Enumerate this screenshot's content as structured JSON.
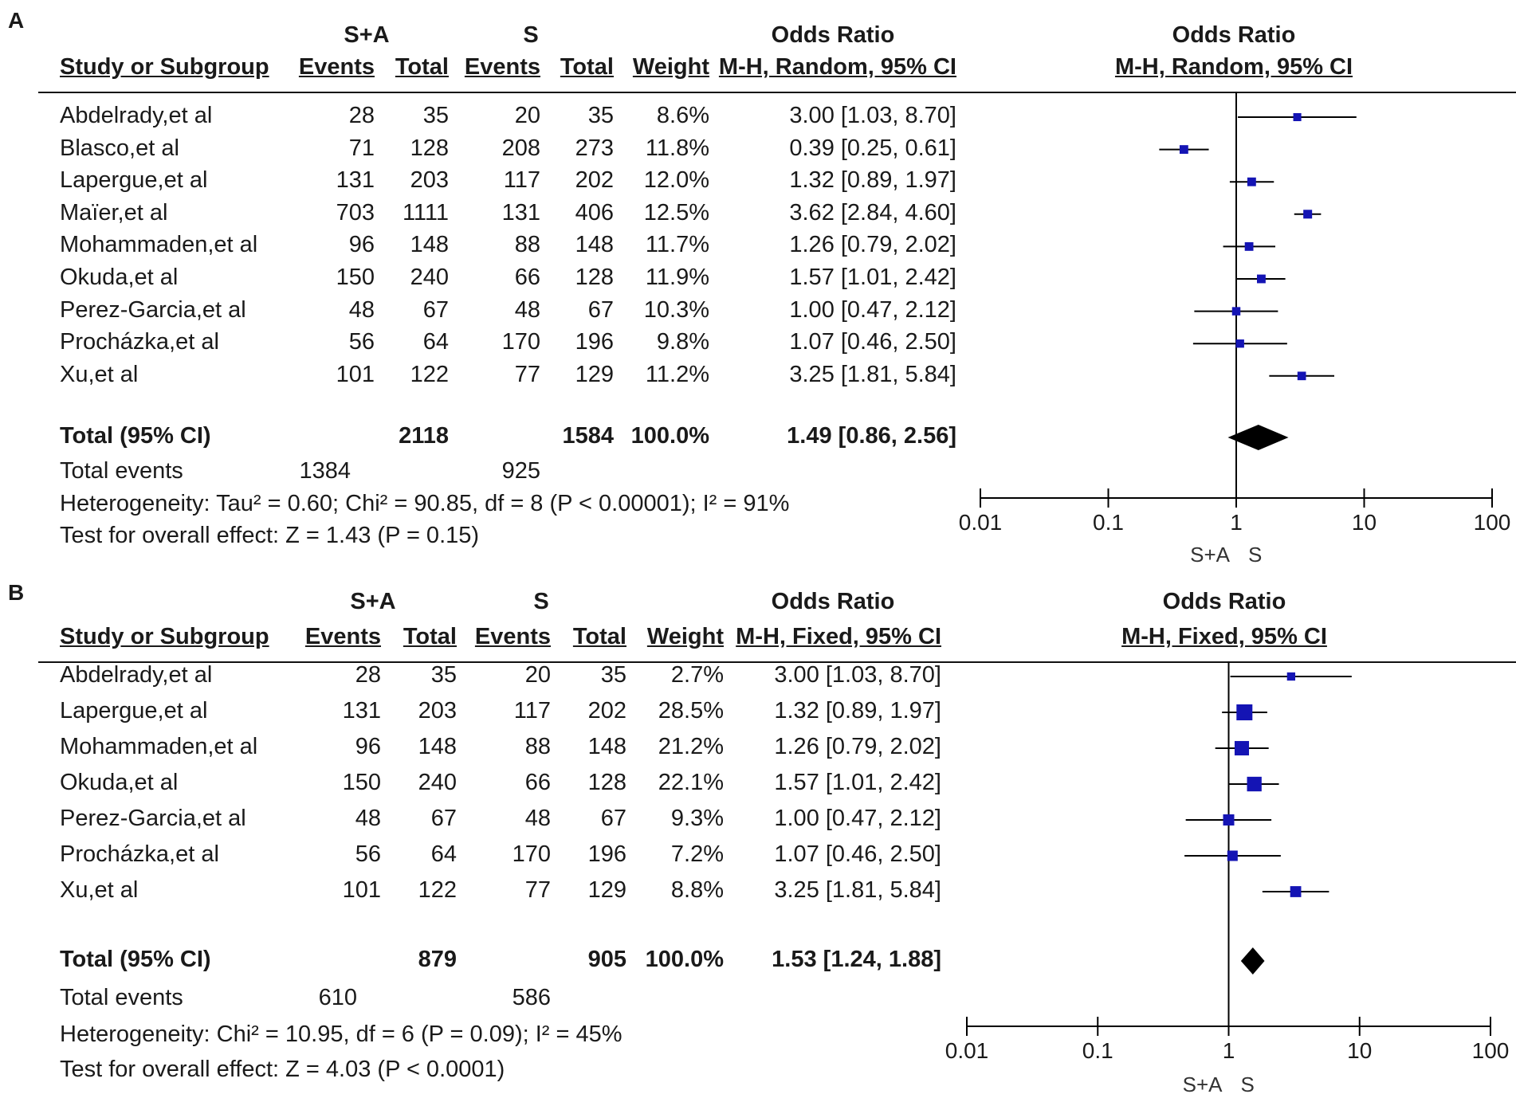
{
  "chart_data": [
    {
      "type": "forest",
      "panel_label": "A",
      "group_headers": {
        "treatment": "S+A",
        "control": "S",
        "or_table": "Odds Ratio",
        "or_plot": "Odds Ratio"
      },
      "column_headers": {
        "study": "Study or Subgroup",
        "t_events": "Events",
        "t_total": "Total",
        "c_events": "Events",
        "c_total": "Total",
        "weight": "Weight",
        "or_ci": "M-H, Random, 95% CI",
        "plot_method": "M-H, Random, 95% CI"
      },
      "studies": [
        {
          "name": "Abdelrady,et al",
          "t_events": "28",
          "t_total": "35",
          "c_events": "20",
          "c_total": "35",
          "weight": "8.6%",
          "ci_text": "3.00 [1.03, 8.70]",
          "or": 3.0,
          "lo": 1.03,
          "hi": 8.7,
          "w": 8.6
        },
        {
          "name": "Blasco,et al",
          "t_events": "71",
          "t_total": "128",
          "c_events": "208",
          "c_total": "273",
          "weight": "11.8%",
          "ci_text": "0.39 [0.25, 0.61]",
          "or": 0.39,
          "lo": 0.25,
          "hi": 0.61,
          "w": 11.8
        },
        {
          "name": "Lapergue,et al",
          "t_events": "131",
          "t_total": "203",
          "c_events": "117",
          "c_total": "202",
          "weight": "12.0%",
          "ci_text": "1.32 [0.89, 1.97]",
          "or": 1.32,
          "lo": 0.89,
          "hi": 1.97,
          "w": 12.0
        },
        {
          "name": "Maïer,et al",
          "t_events": "703",
          "t_total": "1111",
          "c_events": "131",
          "c_total": "406",
          "weight": "12.5%",
          "ci_text": "3.62 [2.84, 4.60]",
          "or": 3.62,
          "lo": 2.84,
          "hi": 4.6,
          "w": 12.5
        },
        {
          "name": "Mohammaden,et al",
          "t_events": "96",
          "t_total": "148",
          "c_events": "88",
          "c_total": "148",
          "weight": "11.7%",
          "ci_text": "1.26 [0.79, 2.02]",
          "or": 1.26,
          "lo": 0.79,
          "hi": 2.02,
          "w": 11.7
        },
        {
          "name": "Okuda,et al",
          "t_events": "150",
          "t_total": "240",
          "c_events": "66",
          "c_total": "128",
          "weight": "11.9%",
          "ci_text": "1.57 [1.01, 2.42]",
          "or": 1.57,
          "lo": 1.01,
          "hi": 2.42,
          "w": 11.9
        },
        {
          "name": "Perez-Garcia,et al",
          "t_events": "48",
          "t_total": "67",
          "c_events": "48",
          "c_total": "67",
          "weight": "10.3%",
          "ci_text": "1.00 [0.47, 2.12]",
          "or": 1.0,
          "lo": 0.47,
          "hi": 2.12,
          "w": 10.3
        },
        {
          "name": "Procházka,et al",
          "t_events": "56",
          "t_total": "64",
          "c_events": "170",
          "c_total": "196",
          "weight": "9.8%",
          "ci_text": "1.07 [0.46, 2.50]",
          "or": 1.07,
          "lo": 0.46,
          "hi": 2.5,
          "w": 9.8
        },
        {
          "name": "Xu,et al",
          "t_events": "101",
          "t_total": "122",
          "c_events": "77",
          "c_total": "129",
          "weight": "11.2%",
          "ci_text": "3.25 [1.81, 5.84]",
          "or": 3.25,
          "lo": 1.81,
          "hi": 5.84,
          "w": 11.2
        }
      ],
      "total": {
        "label": "Total (95% CI)",
        "t_total": "2118",
        "c_total": "1584",
        "weight": "100.0%",
        "ci_text": "1.49 [0.86, 2.56]",
        "or": 1.49,
        "lo": 0.86,
        "hi": 2.56
      },
      "total_events": {
        "label": "Total events",
        "t": "1384",
        "c": "925"
      },
      "heterogeneity": "Heterogeneity: Tau² = 0.60; Chi² = 90.85, df = 8 (P < 0.00001); I² = 91%",
      "overall_effect": "Test for overall effect: Z = 1.43 (P = 0.15)",
      "axis": {
        "scale": "log",
        "ticks": [
          0.01,
          0.1,
          1,
          10,
          100
        ],
        "tick_labels": [
          "0.01",
          "0.1",
          "1",
          "10",
          "100"
        ],
        "xlim": [
          0.01,
          100
        ],
        "favours_left": "S+A",
        "favours_right": "S"
      },
      "colors": {
        "marker": "#1414b4",
        "line": "#000000",
        "diamond": "#000000"
      }
    },
    {
      "type": "forest",
      "panel_label": "B",
      "group_headers": {
        "treatment": "S+A",
        "control": "S",
        "or_table": "Odds Ratio",
        "or_plot": "Odds Ratio"
      },
      "column_headers": {
        "study": "Study or Subgroup",
        "t_events": "Events",
        "t_total": "Total",
        "c_events": "Events",
        "c_total": "Total",
        "weight": "Weight",
        "or_ci": "M-H, Fixed, 95% CI",
        "plot_method": "M-H, Fixed, 95% CI"
      },
      "studies": [
        {
          "name": "Abdelrady,et al",
          "t_events": "28",
          "t_total": "35",
          "c_events": "20",
          "c_total": "35",
          "weight": "2.7%",
          "ci_text": "3.00 [1.03, 8.70]",
          "or": 3.0,
          "lo": 1.03,
          "hi": 8.7,
          "w": 2.7
        },
        {
          "name": "Lapergue,et al",
          "t_events": "131",
          "t_total": "203",
          "c_events": "117",
          "c_total": "202",
          "weight": "28.5%",
          "ci_text": "1.32 [0.89, 1.97]",
          "or": 1.32,
          "lo": 0.89,
          "hi": 1.97,
          "w": 28.5
        },
        {
          "name": "Mohammaden,et al",
          "t_events": "96",
          "t_total": "148",
          "c_events": "88",
          "c_total": "148",
          "weight": "21.2%",
          "ci_text": "1.26 [0.79, 2.02]",
          "or": 1.26,
          "lo": 0.79,
          "hi": 2.02,
          "w": 21.2
        },
        {
          "name": "Okuda,et al",
          "t_events": "150",
          "t_total": "240",
          "c_events": "66",
          "c_total": "128",
          "weight": "22.1%",
          "ci_text": "1.57 [1.01, 2.42]",
          "or": 1.57,
          "lo": 1.01,
          "hi": 2.42,
          "w": 22.1
        },
        {
          "name": "Perez-Garcia,et al",
          "t_events": "48",
          "t_total": "67",
          "c_events": "48",
          "c_total": "67",
          "weight": "9.3%",
          "ci_text": "1.00 [0.47, 2.12]",
          "or": 1.0,
          "lo": 0.47,
          "hi": 2.12,
          "w": 9.3
        },
        {
          "name": "Procházka,et al",
          "t_events": "56",
          "t_total": "64",
          "c_events": "170",
          "c_total": "196",
          "weight": "7.2%",
          "ci_text": "1.07 [0.46, 2.50]",
          "or": 1.07,
          "lo": 0.46,
          "hi": 2.5,
          "w": 7.2
        },
        {
          "name": "Xu,et al",
          "t_events": "101",
          "t_total": "122",
          "c_events": "77",
          "c_total": "129",
          "weight": "8.8%",
          "ci_text": "3.25 [1.81, 5.84]",
          "or": 3.25,
          "lo": 1.81,
          "hi": 5.84,
          "w": 8.8
        }
      ],
      "total": {
        "label": "Total (95% CI)",
        "t_total": "879",
        "c_total": "905",
        "weight": "100.0%",
        "ci_text": "1.53 [1.24, 1.88]",
        "or": 1.53,
        "lo": 1.24,
        "hi": 1.88
      },
      "total_events": {
        "label": "Total events",
        "t": "610",
        "c": "586"
      },
      "heterogeneity": "Heterogeneity: Chi² = 10.95, df = 6 (P = 0.09); I² = 45%",
      "overall_effect": "Test for overall effect: Z = 4.03 (P < 0.0001)",
      "axis": {
        "scale": "log",
        "ticks": [
          0.01,
          0.1,
          1,
          10,
          100
        ],
        "tick_labels": [
          "0.01",
          "0.1",
          "1",
          "10",
          "100"
        ],
        "xlim": [
          0.01,
          100
        ],
        "favours_left": "S+A",
        "favours_right": "S"
      },
      "colors": {
        "marker": "#1414b4",
        "line": "#000000",
        "diamond": "#000000"
      }
    }
  ]
}
